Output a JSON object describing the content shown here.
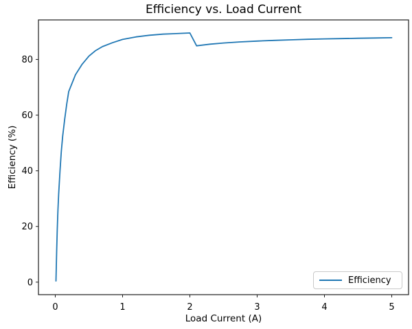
{
  "chart_data": {
    "type": "line",
    "title": "Efficiency vs. Load Current",
    "xlabel": "Load Current (A)",
    "ylabel": "Efficiency (%)",
    "xlim": [
      -0.25,
      5.25
    ],
    "ylim": [
      -4.5,
      94.2
    ],
    "xticks": [
      0,
      1,
      2,
      3,
      4,
      5
    ],
    "yticks": [
      0,
      20,
      40,
      60,
      80
    ],
    "grid": false,
    "legend": {
      "position": "lower right",
      "entries": [
        "Efficiency"
      ]
    },
    "series": [
      {
        "name": "Efficiency",
        "color": "#1f77b4",
        "points": [
          [
            0.01,
            0.4
          ],
          [
            0.02,
            11
          ],
          [
            0.03,
            19
          ],
          [
            0.04,
            26
          ],
          [
            0.05,
            31.5
          ],
          [
            0.07,
            40
          ],
          [
            0.09,
            47
          ],
          [
            0.11,
            52.5
          ],
          [
            0.14,
            58.5
          ],
          [
            0.17,
            64
          ],
          [
            0.2,
            68.5
          ],
          [
            0.25,
            71.5
          ],
          [
            0.3,
            74.5
          ],
          [
            0.4,
            78.3
          ],
          [
            0.5,
            81.2
          ],
          [
            0.6,
            83.2
          ],
          [
            0.7,
            84.6
          ],
          [
            0.85,
            86.0
          ],
          [
            1.0,
            87.2
          ],
          [
            1.2,
            88.1
          ],
          [
            1.4,
            88.7
          ],
          [
            1.6,
            89.1
          ],
          [
            1.8,
            89.3
          ],
          [
            2.0,
            89.5
          ],
          [
            2.1,
            84.9
          ],
          [
            2.3,
            85.5
          ],
          [
            2.5,
            85.9
          ],
          [
            2.75,
            86.3
          ],
          [
            3.0,
            86.6
          ],
          [
            3.25,
            86.85
          ],
          [
            3.5,
            87.05
          ],
          [
            3.75,
            87.25
          ],
          [
            4.0,
            87.4
          ],
          [
            4.25,
            87.5
          ],
          [
            4.5,
            87.6
          ],
          [
            4.75,
            87.7
          ],
          [
            5.0,
            87.8
          ]
        ]
      }
    ]
  },
  "colors": {
    "background": "#ffffff",
    "line": "#1f77b4",
    "spine": "#1c1c1c",
    "tick": "#1c1c1c",
    "text": "#000000",
    "legend_border": "#c9c9c9"
  }
}
